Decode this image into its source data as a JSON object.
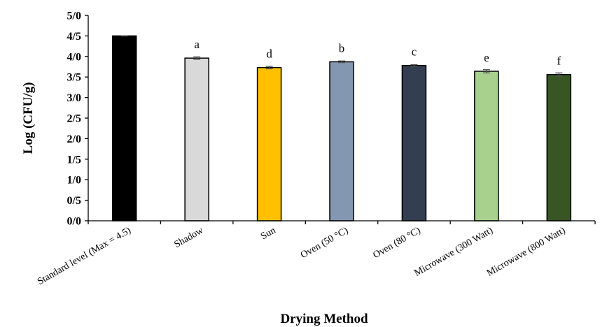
{
  "chart_data": {
    "type": "bar",
    "title": "",
    "xlabel": "Drying Method",
    "ylabel": "Log (CFU/g)",
    "ylim": [
      0,
      5
    ],
    "yticks": [
      {
        "value": 0,
        "label": "0/0"
      },
      {
        "value": 0.5,
        "label": "0/5"
      },
      {
        "value": 1,
        "label": "1/0"
      },
      {
        "value": 1.5,
        "label": "1/5"
      },
      {
        "value": 2,
        "label": "2/0"
      },
      {
        "value": 2.5,
        "label": "2/5"
      },
      {
        "value": 3,
        "label": "3/0"
      },
      {
        "value": 3.5,
        "label": "3/5"
      },
      {
        "value": 4,
        "label": "4/0"
      },
      {
        "value": 4.5,
        "label": "4/5"
      },
      {
        "value": 5,
        "label": "5/0"
      }
    ],
    "categories": [
      "Standard level (Max = 4.5)",
      "Shadow",
      "Sun",
      "Oven (50 °C)",
      "Oven (80 °C)",
      "Microwave (300 Watt)",
      "Microwave (800 Watt)"
    ],
    "values": [
      4.5,
      3.96,
      3.73,
      3.87,
      3.78,
      3.64,
      3.56
    ],
    "errors": [
      0.0,
      0.03,
      0.03,
      0.02,
      0.02,
      0.04,
      0.04
    ],
    "significance_letters": [
      "",
      "a",
      "d",
      "b",
      "c",
      "e",
      "f"
    ],
    "colors": [
      "#000000",
      "#d9d9d9",
      "#ffc000",
      "#8497b0",
      "#333f50",
      "#a9d18e",
      "#375623"
    ],
    "grid": false,
    "legend": "none"
  }
}
